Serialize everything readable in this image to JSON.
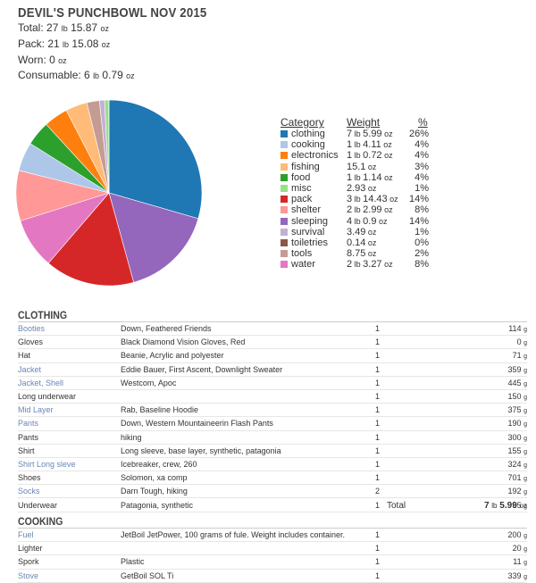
{
  "list": {
    "title": "DEVIL'S PUNCHBOWL NOV 2015",
    "stats": [
      {
        "label": "Total: 27",
        "u1": "lb",
        "v2": "15.87",
        "u2": "oz"
      },
      {
        "label": "Pack: 21",
        "u1": "lb",
        "v2": "15.08",
        "u2": "oz"
      },
      {
        "label": "Worn: 0",
        "u1": "",
        "v2": "",
        "u2": "oz"
      },
      {
        "label": "Consumable: 6",
        "u1": "lb",
        "v2": "0.79",
        "u2": "oz"
      }
    ]
  },
  "legend": {
    "headers": {
      "category": "Category",
      "weight": "Weight",
      "pct": "%"
    },
    "rows": [
      {
        "cat": "clothing",
        "lb": "7",
        "oz": "5.99",
        "pct": "26%",
        "color": "#1f77b4"
      },
      {
        "cat": "cooking",
        "lb": "1",
        "oz": "4.11",
        "pct": "4%",
        "color": "#aec7e8"
      },
      {
        "cat": "electronics",
        "lb": "1",
        "oz": "0.72",
        "pct": "4%",
        "color": "#ff7f0e"
      },
      {
        "cat": "fishing",
        "lb": "",
        "oz": "15.1",
        "pct": "3%",
        "color": "#ffbb78"
      },
      {
        "cat": "food",
        "lb": "1",
        "oz": "1.14",
        "pct": "4%",
        "color": "#2ca02c"
      },
      {
        "cat": "misc",
        "lb": "",
        "oz": "2.93",
        "pct": "1%",
        "color": "#98df8a"
      },
      {
        "cat": "pack",
        "lb": "3",
        "oz": "14.43",
        "pct": "14%",
        "color": "#d62728"
      },
      {
        "cat": "shelter",
        "lb": "2",
        "oz": "2.99",
        "pct": "8%",
        "color": "#ff9896"
      },
      {
        "cat": "sleeping",
        "lb": "4",
        "oz": "0.9",
        "pct": "14%",
        "color": "#9467bd"
      },
      {
        "cat": "survival",
        "lb": "",
        "oz": "3.49",
        "pct": "1%",
        "color": "#c5b0d5"
      },
      {
        "cat": "toiletries",
        "lb": "",
        "oz": "0.14",
        "pct": "0%",
        "color": "#8c564b"
      },
      {
        "cat": "tools",
        "lb": "",
        "oz": "8.75",
        "pct": "2%",
        "color": "#c49c94"
      },
      {
        "cat": "water",
        "lb": "2",
        "oz": "3.27",
        "pct": "8%",
        "color": "#e377c2"
      }
    ]
  },
  "chart_data": {
    "type": "pie",
    "categories": [
      "clothing",
      "sleeping",
      "pack",
      "water",
      "shelter",
      "cooking",
      "food",
      "electronics",
      "fishing",
      "tools",
      "survival",
      "misc",
      "toiletries"
    ],
    "values": [
      7.37,
      4.06,
      3.9,
      2.2,
      2.19,
      1.26,
      1.07,
      1.05,
      0.94,
      0.55,
      0.22,
      0.18,
      0.01
    ],
    "colors": [
      "#1f77b4",
      "#9467bd",
      "#d62728",
      "#e377c2",
      "#ff9896",
      "#aec7e8",
      "#2ca02c",
      "#ff7f0e",
      "#ffbb78",
      "#c49c94",
      "#c5b0d5",
      "#98df8a",
      "#8c564b"
    ]
  },
  "sections": {
    "clothing": {
      "title": "CLOTHING",
      "items": [
        {
          "name": "Booties",
          "desc": "Down, Feathered Friends",
          "qty": "1",
          "wt": "114",
          "u": "g",
          "link": true
        },
        {
          "name": "Gloves",
          "desc": "Black Diamond Vision Gloves, Red",
          "qty": "1",
          "wt": "0",
          "u": "g",
          "link": false
        },
        {
          "name": "Hat",
          "desc": "Beanie, Acrylic and polyester",
          "qty": "1",
          "wt": "71",
          "u": "g",
          "link": false
        },
        {
          "name": "Jacket",
          "desc": "Eddie Bauer, First Ascent, Downlight Sweater",
          "qty": "1",
          "wt": "359",
          "u": "g",
          "link": true
        },
        {
          "name": "Jacket, Shell",
          "desc": "Westcom, Apoc",
          "qty": "1",
          "wt": "445",
          "u": "g",
          "link": true
        },
        {
          "name": "Long underwear",
          "desc": "",
          "qty": "1",
          "wt": "150",
          "u": "g",
          "link": false
        },
        {
          "name": "Mid Layer",
          "desc": "Rab, Baseline Hoodie",
          "qty": "1",
          "wt": "375",
          "u": "g",
          "link": true
        },
        {
          "name": "Pants",
          "desc": "Down, Western Mountaineerin Flash Pants",
          "qty": "1",
          "wt": "190",
          "u": "g",
          "link": true
        },
        {
          "name": "Pants",
          "desc": "hiking",
          "qty": "1",
          "wt": "300",
          "u": "g",
          "link": false
        },
        {
          "name": "Shirt",
          "desc": "Long sleeve, base layer, synthetic, patagonia",
          "qty": "1",
          "wt": "155",
          "u": "g",
          "link": false
        },
        {
          "name": "Shirt Long sleve",
          "desc": "Icebreaker, crew, 260",
          "qty": "1",
          "wt": "324",
          "u": "g",
          "link": true
        },
        {
          "name": "Shoes",
          "desc": "Solomon, xa comp",
          "qty": "1",
          "wt": "701",
          "u": "g",
          "link": false
        },
        {
          "name": "Socks",
          "desc": "Darn Tough, hiking",
          "qty": "2",
          "wt": "192",
          "u": "g",
          "link": true
        },
        {
          "name": "Underwear",
          "desc": "Patagonia, synthetic",
          "qty": "1",
          "wt": "65",
          "u": "g",
          "link": false
        }
      ],
      "total_label": "Total",
      "total_lb": "7",
      "total_oz": "5.99"
    },
    "cooking": {
      "title": "COOKING",
      "items": [
        {
          "name": "Fuel",
          "desc": "JetBoil JetPower, 100 grams of fule. Weight includes container.",
          "qty": "1",
          "wt": "200",
          "u": "g",
          "link": true
        },
        {
          "name": "Lighter",
          "desc": "",
          "qty": "1",
          "wt": "20",
          "u": "g",
          "link": false
        },
        {
          "name": "Spork",
          "desc": "Plastic",
          "qty": "1",
          "wt": "11",
          "u": "g",
          "link": false
        },
        {
          "name": "Stove",
          "desc": "GetBoil SOL Ti",
          "qty": "1",
          "wt": "339",
          "u": "g",
          "link": true
        }
      ]
    }
  }
}
